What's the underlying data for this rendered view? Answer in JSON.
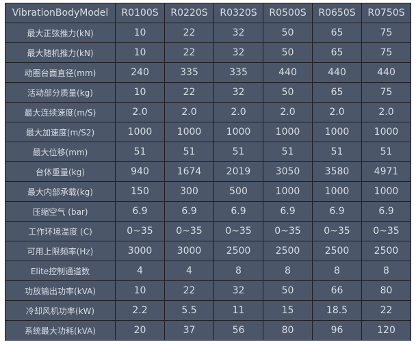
{
  "header": [
    "VibrationBodyModel",
    "R0100S",
    "R0220S",
    "R0320S",
    "R0500S",
    "R0650S",
    "R0750S"
  ],
  "rows": [
    [
      "最大正弦推力(kN)",
      "10",
      "22",
      "32",
      "50",
      "65",
      "75"
    ],
    [
      "最大随机推力(kN)",
      "10",
      "22",
      "32",
      "50",
      "65",
      "75"
    ],
    [
      "动圈台面直径(mm)",
      "240",
      "335",
      "335",
      "440",
      "440",
      "440"
    ],
    [
      "活动部分质量(kg)",
      "10",
      "22",
      "32",
      "50",
      "65",
      "75"
    ],
    [
      "最大连续速度(m/S)",
      "2.0",
      "2.0",
      "2.0",
      "2.0",
      "2.0",
      "2.0"
    ],
    [
      "最大加速度(m/S2)",
      "1000",
      "1000",
      "1000",
      "1000",
      "1000",
      "1000"
    ],
    [
      "最大位移(mm)",
      "51",
      "51",
      "51",
      "51",
      "51",
      "51"
    ],
    [
      "台体重量(kg)",
      "940",
      "1674",
      "2019",
      "3050",
      "3580",
      "4971"
    ],
    [
      "最大内部承载(kg)",
      "150",
      "300",
      "500",
      "1000",
      "1000",
      "1000"
    ],
    [
      "压缩空气 (bar)",
      "6.9",
      "6.9",
      "6.9",
      "6.9",
      "6.9",
      "6.9"
    ],
    [
      "工作环境温度 (C)",
      "0~35",
      "0~35",
      "0~35",
      "0~35",
      "0~35",
      "0~35"
    ],
    [
      "可用上限频率(Hz)",
      "3000",
      "3000",
      "2500",
      "2500",
      "2500",
      "2500"
    ],
    [
      "Elite控制通道数",
      "4",
      "4",
      "8",
      "8",
      "8",
      "8"
    ],
    [
      "功放输出功率(kVA)",
      "10",
      "22",
      "32",
      "50",
      "66",
      "80"
    ],
    [
      "冷却风机功率(kW)",
      "2.2",
      "5.5",
      "11",
      "15",
      "18.5",
      "22"
    ],
    [
      "系统最大功耗(kVA)",
      "20",
      "37",
      "56",
      "80",
      "96",
      "120"
    ]
  ]
}
